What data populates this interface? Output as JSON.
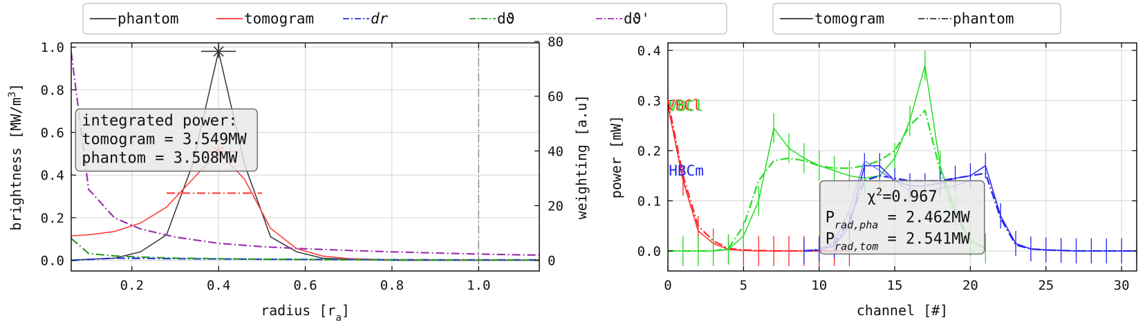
{
  "colors": {
    "phantom": "#333333",
    "tomogram": "#ff3030",
    "dr": "#2233dd",
    "dtheta": "#2a9a2a",
    "dtheta_prime": "#9933aa",
    "vbcl": "#ff2222",
    "vbcl_green": "#22dd22",
    "hbcm": "#2222ee",
    "hbcm_light": "#7777ff",
    "grid": "#d4d4d4",
    "box_fill": "#e8e8e8"
  },
  "chart_data": [
    {
      "type": "line",
      "xlabel": "radius [r",
      "xlabel_sub": "a",
      "xlabel_close": "]",
      "ylabel": "brightness [MW/m",
      "ylabel_sup": "3",
      "ylabel_close": "]",
      "y2label": "weighting [a.u]",
      "xlim": [
        0.06,
        1.14
      ],
      "ylim": [
        -0.05,
        1.02
      ],
      "y2lim": [
        -3.9,
        79.5
      ],
      "xticks": [
        "0.2",
        "0.4",
        "0.6",
        "0.8",
        "1.0"
      ],
      "xtick_values": [
        0.2,
        0.4,
        0.6,
        0.8,
        1.0
      ],
      "yticks": [
        "0.0",
        "0.2",
        "0.4",
        "0.6",
        "0.8",
        "1.0"
      ],
      "ytick_values": [
        0.0,
        0.2,
        0.4,
        0.6,
        0.8,
        1.0
      ],
      "y2ticks": [
        "0",
        "20",
        "40",
        "60",
        "80"
      ],
      "y2tick_values": [
        0,
        20,
        40,
        60,
        80
      ],
      "grid": true,
      "legend_position": "top-outside",
      "legend": [
        {
          "label": "phantom",
          "style": "solid",
          "color_key": "phantom"
        },
        {
          "label": "tomogram",
          "style": "solid",
          "color_key": "tomogram"
        },
        {
          "label": "dr",
          "style": "dashdot",
          "color_key": "dr",
          "italic": true
        },
        {
          "label": "dϑ",
          "style": "dashdot",
          "color_key": "dtheta"
        },
        {
          "label": "dϑ'",
          "style": "dashdot",
          "color_key": "dtheta_prime"
        }
      ],
      "series": [
        {
          "name": "phantom",
          "axis": "left",
          "style": "solid",
          "color_key": "phantom",
          "x": [
            0.06,
            0.1,
            0.16,
            0.22,
            0.28,
            0.34,
            0.4,
            0.46,
            0.52,
            0.58,
            0.64,
            0.7,
            0.8,
            0.9,
            1.0,
            1.14
          ],
          "y": [
            0.0,
            0.005,
            0.01,
            0.04,
            0.12,
            0.45,
            0.98,
            0.45,
            0.11,
            0.04,
            0.01,
            0.005,
            0.0,
            0.0,
            0.0,
            0.0
          ]
        },
        {
          "name": "tomogram",
          "axis": "left",
          "style": "solid",
          "color_key": "tomogram",
          "x": [
            0.06,
            0.1,
            0.16,
            0.22,
            0.28,
            0.34,
            0.4,
            0.46,
            0.52,
            0.58,
            0.64,
            0.7,
            0.8,
            0.9,
            1.0,
            1.14
          ],
          "y": [
            0.115,
            0.12,
            0.135,
            0.175,
            0.25,
            0.38,
            0.51,
            0.38,
            0.15,
            0.055,
            0.02,
            0.008,
            0.003,
            0.002,
            0.001,
            0.0
          ]
        },
        {
          "name": "dr",
          "axis": "right",
          "style": "dashdot",
          "color_key": "dr",
          "x": [
            0.06,
            0.16,
            0.3,
            0.5,
            0.7,
            0.9,
            1.14
          ],
          "y": [
            0.0,
            0.8,
            0.6,
            0.4,
            0.3,
            0.2,
            0.2
          ]
        },
        {
          "name": "dϑ",
          "axis": "right",
          "style": "dashdot",
          "color_key": "dtheta",
          "x": [
            0.06,
            0.1,
            0.16,
            0.22,
            0.3,
            0.4,
            0.5,
            0.7,
            1.14
          ],
          "y": [
            8.0,
            2.5,
            1.6,
            1.2,
            0.8,
            0.6,
            0.4,
            0.2,
            0.1
          ]
        },
        {
          "name": "dϑ'",
          "axis": "right",
          "style": "dashdot",
          "color_key": "dtheta_prime",
          "x": [
            0.06,
            0.1,
            0.16,
            0.22,
            0.3,
            0.4,
            0.5,
            0.6,
            0.7,
            0.8,
            0.9,
            1.0,
            1.14
          ],
          "y": [
            76.0,
            26.0,
            15.5,
            11.5,
            8.5,
            6.2,
            5.0,
            4.2,
            3.6,
            3.1,
            2.7,
            2.3,
            1.9
          ]
        }
      ],
      "markers": [
        {
          "x": 0.4,
          "y": 0.98,
          "symbol": "x",
          "color_key": "phantom",
          "hwidth": 0.04
        },
        {
          "x": 0.4,
          "y": 0.51,
          "symbol": "x",
          "color_key": "tomogram",
          "hwidth": 0.04
        }
      ],
      "fwhm_lines": [
        {
          "x1": 0.28,
          "x2": 0.5,
          "y": 0.315,
          "color_key": "tomogram"
        }
      ],
      "vline": {
        "x": 1.0,
        "color": "#888888"
      },
      "annotation": {
        "lines": [
          "integrated power:",
          "tomogram = 3.549MW",
          "phantom = 3.508MW"
        ],
        "anchor_x": 0.07,
        "anchor_y": 0.6
      }
    },
    {
      "type": "line",
      "xlabel": "channel [#]",
      "ylabel": "power [mW]",
      "xlim": [
        0,
        31
      ],
      "ylim": [
        -0.04,
        0.415
      ],
      "xticks": [
        "0",
        "5",
        "10",
        "15",
        "20",
        "25",
        "30"
      ],
      "xtick_values": [
        0,
        5,
        10,
        15,
        20,
        25,
        30
      ],
      "yticks": [
        "0.0",
        "0.1",
        "0.2",
        "0.3",
        "0.4"
      ],
      "ytick_values": [
        0.0,
        0.1,
        0.2,
        0.3,
        0.4
      ],
      "grid": true,
      "legend_position": "top-outside",
      "legend": [
        {
          "label": "tomogram",
          "style": "solid",
          "color_key": "phantom"
        },
        {
          "label": "phantom",
          "style": "dashdot",
          "color_key": "phantom"
        }
      ],
      "camera_labels": [
        {
          "text": "VBCl",
          "x": 0,
          "y": 0.29,
          "color_key": "vbcl"
        },
        {
          "text": "VBCl",
          "x": 0,
          "y": 0.29,
          "color_key": "vbcl_green",
          "offset": true
        },
        {
          "text": "HBCm",
          "x": 0.15,
          "y": 0.16,
          "color_key": "hbcm"
        }
      ],
      "series": [
        {
          "name": "VBCl tomogram",
          "style": "solid",
          "color_key": "vbcl",
          "x": [
            0,
            1,
            2,
            3,
            4,
            5,
            6,
            7,
            8,
            9,
            10,
            11,
            12
          ],
          "y": [
            0.29,
            0.14,
            0.04,
            0.015,
            0.003,
            0.001,
            0.0,
            0.0,
            0.0,
            0.0,
            0.0,
            0.0,
            0.0
          ],
          "errorbar": 0.03,
          "errorbar_until": 12
        },
        {
          "name": "VBCl phantom",
          "style": "dashdot",
          "color_key": "vbcl",
          "x": [
            0,
            1,
            2,
            3,
            4,
            5,
            6,
            7,
            8,
            9,
            10,
            11,
            12
          ],
          "y": [
            0.3,
            0.15,
            0.05,
            0.02,
            0.005,
            0.002,
            0.001,
            0.0,
            0.0,
            0.0,
            0.0,
            0.0,
            0.0
          ]
        },
        {
          "name": "green tomogram",
          "style": "solid",
          "color_key": "vbcl_green",
          "x": [
            0,
            1,
            2,
            3,
            4,
            5,
            6,
            7,
            8,
            9,
            10,
            11,
            12,
            13,
            14,
            15,
            16,
            17,
            18,
            19,
            20,
            21
          ],
          "y": [
            0.0,
            0.0,
            0.0,
            0.0,
            0.003,
            0.03,
            0.1,
            0.245,
            0.205,
            0.185,
            0.17,
            0.16,
            0.15,
            0.145,
            0.15,
            0.185,
            0.26,
            0.37,
            0.17,
            0.08,
            0.02,
            0.005
          ],
          "errorbar": 0.03
        },
        {
          "name": "green phantom",
          "style": "dashdot",
          "color_key": "vbcl_green",
          "x": [
            0,
            1,
            2,
            3,
            4,
            5,
            6,
            7,
            8,
            9,
            10,
            11,
            12,
            13,
            14,
            15,
            16,
            17,
            18,
            19,
            20,
            21
          ],
          "y": [
            0.0,
            0.0,
            0.0,
            0.0,
            0.005,
            0.05,
            0.14,
            0.18,
            0.185,
            0.18,
            0.17,
            0.165,
            0.165,
            0.17,
            0.18,
            0.2,
            0.25,
            0.28,
            0.16,
            0.07,
            0.02,
            0.005
          ]
        },
        {
          "name": "HBCm tomogram",
          "style": "solid",
          "color_key": "hbcm",
          "x": [
            9,
            10,
            11,
            12,
            13,
            14,
            15,
            16,
            17,
            18,
            19,
            20,
            21,
            22,
            23,
            24,
            25,
            26,
            27,
            28,
            29,
            30,
            31
          ],
          "y": [
            0.0,
            0.002,
            0.01,
            0.05,
            0.17,
            0.17,
            0.14,
            0.13,
            0.13,
            0.135,
            0.145,
            0.15,
            0.17,
            0.07,
            0.015,
            0.004,
            0.002,
            0.001,
            0.0,
            0.0,
            0.0,
            0.0,
            0.0
          ],
          "errorbar": 0.025
        },
        {
          "name": "HBCm phantom",
          "style": "dashdot",
          "color_key": "hbcm",
          "x": [
            9,
            10,
            11,
            12,
            13,
            14,
            15,
            16,
            17,
            18,
            19,
            20,
            21,
            22,
            23,
            24,
            25,
            26,
            27,
            28,
            29,
            30,
            31
          ],
          "y": [
            0.0,
            0.003,
            0.015,
            0.06,
            0.14,
            0.15,
            0.145,
            0.14,
            0.14,
            0.14,
            0.145,
            0.15,
            0.155,
            0.065,
            0.012,
            0.004,
            0.002,
            0.001,
            0.0,
            0.0,
            0.0,
            0.0,
            0.0
          ]
        },
        {
          "name": "HBCm light tomogram",
          "style": "solid",
          "color_key": "hbcm_light",
          "x": [
            10,
            11,
            12,
            13,
            14,
            15,
            16,
            17,
            18,
            19,
            20
          ],
          "y": [
            0.0,
            0.02,
            0.08,
            0.18,
            0.16,
            0.14,
            0.12,
            0.12,
            0.125,
            0.13,
            0.14
          ]
        }
      ],
      "annotation": {
        "chi_prefix": "χ",
        "chi_sup": "2",
        "chi_value": "=0.967",
        "p_pha_main": "P",
        "p_pha_sub": "rad,pha",
        "p_pha_value": " = 2.462MW",
        "p_tom_main": "P",
        "p_tom_sub": "rad,tom",
        "p_tom_value": " = 2.541MW",
        "anchor_x": 10.05,
        "anchor_y": 0.14
      }
    }
  ]
}
